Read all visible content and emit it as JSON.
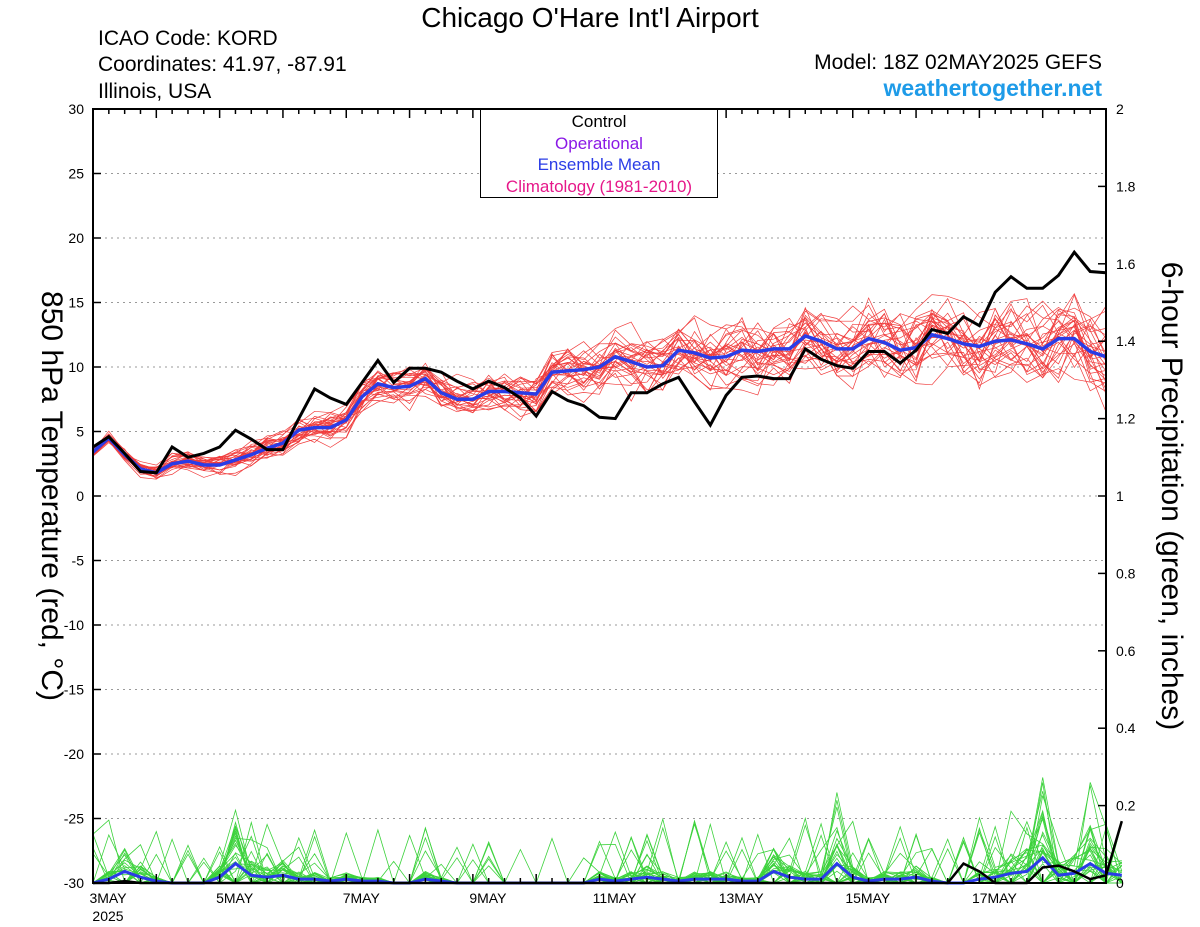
{
  "header": {
    "title": "Chicago O'Hare Int'l Airport",
    "icao": "ICAO Code: KORD",
    "coordinates": "Coordinates: 41.97, -87.91",
    "region": "Illinois, USA",
    "model": "Model: 18Z 02MAY2025 GEFS",
    "website": "weathertogether.net"
  },
  "legend": [
    {
      "label": "Control",
      "color": "#000000"
    },
    {
      "label": "Operational",
      "color": "#8a18e6"
    },
    {
      "label": "Ensemble Mean",
      "color": "#2a3ce6"
    },
    {
      "label": "Climatology (1981-2010)",
      "color": "#e6188a"
    }
  ],
  "chart_data": {
    "type": "line",
    "ylabel_left": "850 hPa Temperature (red, °C)",
    "ylabel_right": "6-hour Precipitation (green, inches)",
    "left_axis": {
      "min": -30,
      "max": 30,
      "ticks": [
        -30,
        -25,
        -20,
        -15,
        -10,
        -5,
        0,
        5,
        10,
        15,
        20,
        25,
        30
      ]
    },
    "right_axis": {
      "min": 0,
      "max": 2,
      "ticks": [
        "0",
        "0.2",
        "0.4",
        "0.6",
        "0.8",
        "1",
        "1.2",
        "1.4",
        "1.6",
        "1.8",
        "2"
      ]
    },
    "x_axis": {
      "start_label": "3MAY",
      "year": "2025",
      "labels": [
        "3MAY",
        "5MAY",
        "7MAY",
        "9MAY",
        "11MAY",
        "13MAY",
        "15MAY",
        "17MAY"
      ],
      "step_hours": 6
    },
    "grid": true,
    "colors": {
      "members_temp": "#f03c3c",
      "members_precip": "#3cd23c",
      "control": "#000000",
      "mean": "#2a3ce6"
    },
    "control_temp": [
      3.8,
      4.6,
      3.3,
      1.9,
      1.8,
      3.8,
      3.0,
      3.3,
      3.8,
      5.1,
      4.4,
      3.6,
      3.6,
      6.0,
      8.3,
      7.6,
      7.1,
      8.8,
      10.5,
      8.8,
      9.9,
      9.9,
      9.6,
      8.9,
      8.3,
      8.9,
      8.4,
      7.6,
      6.2,
      8.1,
      7.4,
      7.0,
      6.1,
      6.0,
      8.0,
      8.0,
      8.7,
      9.2,
      7.3,
      5.5,
      7.8,
      9.2,
      9.3,
      9.1,
      9.1,
      11.4,
      10.6,
      10.1,
      9.9,
      11.2,
      11.2,
      10.3,
      11.3,
      12.9,
      12.6,
      13.9,
      13.2,
      15.8,
      17.0,
      16.1,
      16.1,
      17.1,
      18.9,
      17.4,
      17.3
    ],
    "mean_temp": [
      3.4,
      4.5,
      3.2,
      2.1,
      1.8,
      2.5,
      2.7,
      2.4,
      2.4,
      2.8,
      3.2,
      3.7,
      4.1,
      5.1,
      5.3,
      5.3,
      5.9,
      7.7,
      8.7,
      8.4,
      8.5,
      9.1,
      8.0,
      7.5,
      7.5,
      8.1,
      8.1,
      8.0,
      7.9,
      9.6,
      9.7,
      9.8,
      10.0,
      10.8,
      10.4,
      10.0,
      10.1,
      11.3,
      11.1,
      10.7,
      10.8,
      11.3,
      11.2,
      11.4,
      11.4,
      12.4,
      12.0,
      11.4,
      11.4,
      12.2,
      11.9,
      11.3,
      11.5,
      12.5,
      12.2,
      11.8,
      11.6,
      12.0,
      12.1,
      11.8,
      11.4,
      12.2,
      12.2,
      11.2,
      10.8
    ],
    "control_precip": [
      0,
      0,
      0.005,
      0,
      0,
      0,
      0,
      0,
      0,
      0,
      0,
      0,
      0,
      0,
      0,
      0,
      0,
      0,
      0,
      0,
      0,
      0,
      0,
      0,
      0,
      0,
      0,
      0,
      0,
      0,
      0,
      0,
      0,
      0,
      0,
      0,
      0,
      0,
      0,
      0,
      0,
      0,
      0,
      0,
      0,
      0,
      0,
      0,
      0,
      0,
      0,
      0,
      0,
      0,
      0,
      0.05,
      0.03,
      0,
      0,
      0,
      0.04,
      0.045,
      0.03,
      0.01,
      0.02,
      0.16
    ],
    "mean_precip": [
      0,
      0.01,
      0.03,
      0.015,
      0.005,
      0,
      0,
      0,
      0.015,
      0.05,
      0.02,
      0.015,
      0.02,
      0.01,
      0.01,
      0.005,
      0.01,
      0.005,
      0.005,
      0,
      0,
      0.01,
      0.005,
      0,
      0,
      0,
      0,
      0,
      0,
      0,
      0,
      0,
      0.01,
      0.005,
      0.01,
      0.015,
      0.01,
      0.005,
      0.01,
      0.01,
      0.01,
      0.005,
      0.005,
      0.03,
      0.015,
      0.01,
      0.01,
      0.05,
      0.015,
      0.005,
      0.01,
      0.01,
      0.015,
      0.005,
      0,
      0,
      0.01,
      0.015,
      0.025,
      0.03,
      0.065,
      0.02,
      0.025,
      0.05,
      0.025,
      0.02
    ],
    "temp_member_count": 30,
    "precip_member_count": 30
  }
}
